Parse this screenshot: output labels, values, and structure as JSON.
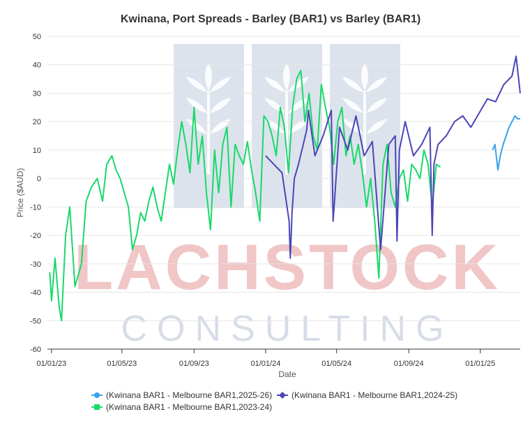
{
  "watermark": {
    "word1": "LACHSTOCK",
    "word2": "CONSULTING"
  },
  "chart_data": {
    "type": "line",
    "title": "Kwinana, Port Spreads - Barley (BAR1) vs Barley (BAR1)",
    "xlabel": "Date",
    "ylabel": "Price ($AUD)",
    "ylim": [
      -60,
      50
    ],
    "yticks": [
      -60,
      -50,
      -40,
      -30,
      -20,
      -10,
      0,
      10,
      20,
      30,
      40,
      50
    ],
    "xlim": [
      "2022-12-25",
      "2025-03-10"
    ],
    "xticks": [
      {
        "date": "2023-01-01",
        "label": "01/01/23"
      },
      {
        "date": "2023-05-01",
        "label": "01/05/23"
      },
      {
        "date": "2023-09-01",
        "label": "01/09/23"
      },
      {
        "date": "2024-01-01",
        "label": "01/01/24"
      },
      {
        "date": "2024-05-01",
        "label": "01/05/24"
      },
      {
        "date": "2024-09-01",
        "label": "01/09/24"
      },
      {
        "date": "2025-01-01",
        "label": "01/01/25"
      }
    ],
    "grid": true,
    "legend_position": "bottom",
    "series": [
      {
        "name": "(Kwinana BAR1 - Melbourne BAR1,2025-26)",
        "color": "#36a2eb",
        "marker": "circle",
        "x": [
          "2025-01-22",
          "2025-01-26",
          "2025-01-31",
          "2025-02-04",
          "2025-02-09",
          "2025-02-14",
          "2025-02-19",
          "2025-02-24",
          "2025-03-01",
          "2025-03-06",
          "2025-03-10"
        ],
        "y": [
          10,
          12,
          3,
          8,
          12,
          15,
          18,
          20,
          22,
          21,
          21
        ]
      },
      {
        "name": "(Kwinana BAR1 - Melbourne BAR1,2024-25)",
        "color": "#4b45b8",
        "marker": "diamond",
        "x": [
          "2024-01-01",
          "2024-01-15",
          "2024-01-29",
          "2024-02-10",
          "2024-02-12",
          "2024-02-15",
          "2024-02-19",
          "2024-02-26",
          "2024-03-11",
          "2024-03-14",
          "2024-03-25",
          "2024-04-08",
          "2024-04-22",
          "2024-04-25",
          "2024-05-06",
          "2024-05-20",
          "2024-06-03",
          "2024-06-17",
          "2024-07-01",
          "2024-07-15",
          "2024-07-29",
          "2024-08-09",
          "2024-08-12",
          "2024-08-16",
          "2024-08-26",
          "2024-09-09",
          "2024-09-23",
          "2024-10-07",
          "2024-10-11",
          "2024-10-14",
          "2024-10-21",
          "2024-11-04",
          "2024-11-18",
          "2024-12-02",
          "2024-12-16",
          "2024-12-30",
          "2025-01-13",
          "2025-01-27",
          "2025-02-10",
          "2025-02-24",
          "2025-03-03",
          "2025-03-10"
        ],
        "y": [
          8,
          5,
          2,
          -15,
          -28,
          -12,
          0,
          5,
          17,
          24,
          8,
          15,
          24,
          -15,
          18,
          10,
          22,
          8,
          13,
          -25,
          12,
          15,
          -22,
          10,
          20,
          8,
          12,
          18,
          -20,
          5,
          12,
          15,
          20,
          22,
          18,
          23,
          28,
          27,
          33,
          36,
          43,
          30
        ]
      },
      {
        "name": "(Kwinana BAR1 - Melbourne BAR1,2023-24)",
        "color": "#18d96a",
        "marker": "square",
        "x": [
          "2022-12-29",
          "2023-01-01",
          "2023-01-07",
          "2023-01-14",
          "2023-01-18",
          "2023-01-25",
          "2023-02-01",
          "2023-02-10",
          "2023-02-21",
          "2023-03-01",
          "2023-03-10",
          "2023-03-20",
          "2023-03-29",
          "2023-04-05",
          "2023-04-14",
          "2023-04-21",
          "2023-04-28",
          "2023-05-05",
          "2023-05-12",
          "2023-05-19",
          "2023-05-26",
          "2023-06-02",
          "2023-06-09",
          "2023-06-16",
          "2023-06-23",
          "2023-06-30",
          "2023-07-07",
          "2023-07-14",
          "2023-07-21",
          "2023-07-28",
          "2023-08-04",
          "2023-08-11",
          "2023-08-18",
          "2023-08-25",
          "2023-09-01",
          "2023-09-08",
          "2023-09-15",
          "2023-09-22",
          "2023-09-29",
          "2023-10-06",
          "2023-10-13",
          "2023-10-20",
          "2023-10-27",
          "2023-11-03",
          "2023-11-10",
          "2023-11-17",
          "2023-11-24",
          "2023-12-01",
          "2023-12-08",
          "2023-12-15",
          "2023-12-22",
          "2023-12-29",
          "2024-01-05",
          "2024-01-12",
          "2024-01-19",
          "2024-01-26",
          "2024-02-02",
          "2024-02-09",
          "2024-02-16",
          "2024-02-23",
          "2024-03-01",
          "2024-03-08",
          "2024-03-15",
          "2024-03-22",
          "2024-03-29",
          "2024-04-05",
          "2024-04-12",
          "2024-04-19",
          "2024-04-26",
          "2024-05-03",
          "2024-05-10",
          "2024-05-17",
          "2024-05-24",
          "2024-05-31",
          "2024-06-07",
          "2024-06-14",
          "2024-06-21",
          "2024-06-28",
          "2024-07-05",
          "2024-07-12",
          "2024-07-19",
          "2024-07-26",
          "2024-08-02",
          "2024-08-09",
          "2024-08-16",
          "2024-08-23",
          "2024-08-30",
          "2024-09-06",
          "2024-09-13",
          "2024-09-20",
          "2024-09-27",
          "2024-10-04",
          "2024-10-11",
          "2024-10-18",
          "2024-10-25"
        ],
        "y": [
          -33,
          -43,
          -28,
          -45,
          -50,
          -20,
          -10,
          -38,
          -30,
          -8,
          -3,
          0,
          -8,
          5,
          8,
          3,
          0,
          -5,
          -10,
          -25,
          -20,
          -12,
          -15,
          -8,
          -3,
          -10,
          -15,
          -5,
          5,
          -2,
          10,
          20,
          12,
          2,
          25,
          5,
          15,
          -5,
          -18,
          10,
          -5,
          12,
          18,
          -10,
          12,
          8,
          5,
          13,
          3,
          -5,
          -15,
          22,
          20,
          15,
          8,
          25,
          18,
          2,
          25,
          35,
          38,
          20,
          30,
          15,
          10,
          33,
          25,
          18,
          5,
          20,
          25,
          8,
          15,
          5,
          12,
          2,
          -10,
          0,
          -15,
          -35,
          5,
          12,
          -5,
          -10,
          0,
          3,
          -8,
          5,
          3,
          0,
          10,
          5,
          -10,
          5,
          4
        ]
      }
    ]
  }
}
